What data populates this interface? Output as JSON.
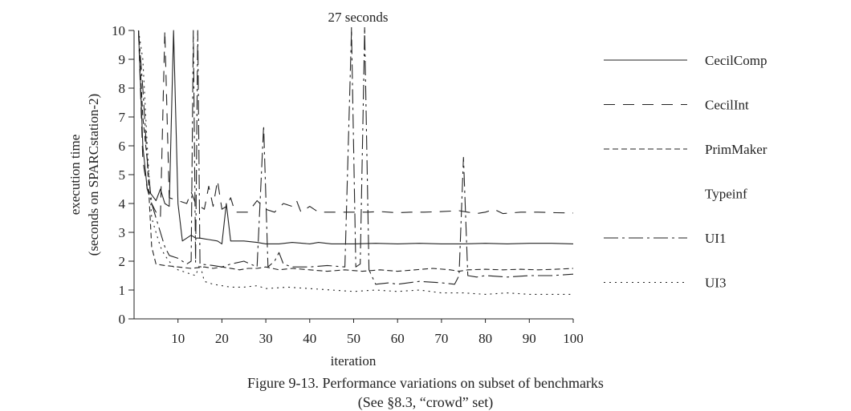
{
  "chart_data": {
    "type": "line",
    "xlabel": "iteration",
    "ylabel_line1": "execution time",
    "ylabel_line2": "(seconds on SPARCstation-2)",
    "xlim": [
      0,
      100
    ],
    "ylim": [
      0,
      10
    ],
    "x_ticks": [
      10,
      20,
      30,
      40,
      50,
      60,
      70,
      80,
      90,
      100
    ],
    "y_ticks": [
      0,
      1,
      2,
      3,
      4,
      5,
      6,
      7,
      8,
      9,
      10
    ],
    "annotation": "27 seconds",
    "legend_position": "right",
    "grid": false,
    "series": [
      {
        "name": "CecilComp",
        "dash": "solid",
        "points": [
          [
            1,
            10
          ],
          [
            2,
            6
          ],
          [
            3,
            4.5
          ],
          [
            4,
            4.3
          ],
          [
            5,
            4.1
          ],
          [
            6,
            4.5
          ],
          [
            7,
            4.0
          ],
          [
            8,
            3.9
          ],
          [
            9,
            10
          ],
          [
            10,
            4.0
          ],
          [
            11,
            2.7
          ],
          [
            12,
            2.8
          ],
          [
            13,
            2.9
          ],
          [
            14,
            2.8
          ],
          [
            15,
            2.8
          ],
          [
            17,
            2.75
          ],
          [
            19,
            2.7
          ],
          [
            20,
            2.6
          ],
          [
            21,
            4.0
          ],
          [
            22,
            2.7
          ],
          [
            25,
            2.7
          ],
          [
            28,
            2.65
          ],
          [
            30,
            2.6
          ],
          [
            33,
            2.6
          ],
          [
            36,
            2.65
          ],
          [
            40,
            2.6
          ],
          [
            42,
            2.65
          ],
          [
            45,
            2.6
          ],
          [
            50,
            2.6
          ],
          [
            55,
            2.62
          ],
          [
            60,
            2.6
          ],
          [
            65,
            2.62
          ],
          [
            70,
            2.6
          ],
          [
            75,
            2.6
          ],
          [
            80,
            2.62
          ],
          [
            85,
            2.6
          ],
          [
            90,
            2.62
          ],
          [
            95,
            2.62
          ],
          [
            100,
            2.6
          ]
        ]
      },
      {
        "name": "CecilInt",
        "dash": "14,10",
        "points": [
          [
            1,
            10
          ],
          [
            2,
            5.5
          ],
          [
            3,
            4.5
          ],
          [
            4,
            4.0
          ],
          [
            5,
            3.7
          ],
          [
            6,
            3.5
          ],
          [
            7,
            10
          ],
          [
            8,
            4.2
          ],
          [
            10,
            4.1
          ],
          [
            12,
            4.0
          ],
          [
            13,
            4.4
          ],
          [
            14,
            4.0
          ],
          [
            16,
            3.8
          ],
          [
            17,
            4.6
          ],
          [
            18,
            3.9
          ],
          [
            19,
            4.8
          ],
          [
            20,
            3.8
          ],
          [
            21,
            3.9
          ],
          [
            22,
            4.2
          ],
          [
            23,
            3.7
          ],
          [
            26,
            3.7
          ],
          [
            28,
            4.1
          ],
          [
            30,
            3.8
          ],
          [
            32,
            3.7
          ],
          [
            34,
            4.0
          ],
          [
            36,
            3.9
          ],
          [
            37,
            4.1
          ],
          [
            38,
            3.7
          ],
          [
            40,
            3.9
          ],
          [
            42,
            3.7
          ],
          [
            45,
            3.7
          ],
          [
            48,
            3.7
          ],
          [
            50,
            3.7
          ],
          [
            53,
            3.7
          ],
          [
            56,
            3.72
          ],
          [
            60,
            3.68
          ],
          [
            63,
            3.7
          ],
          [
            66,
            3.7
          ],
          [
            70,
            3.72
          ],
          [
            74,
            3.75
          ],
          [
            76,
            3.7
          ],
          [
            78,
            3.65
          ],
          [
            80,
            3.7
          ],
          [
            82,
            3.8
          ],
          [
            84,
            3.65
          ],
          [
            88,
            3.7
          ],
          [
            92,
            3.7
          ],
          [
            96,
            3.68
          ],
          [
            100,
            3.67
          ]
        ]
      },
      {
        "name": "PrimMaker",
        "dash": "7,4",
        "points": [
          [
            1,
            10
          ],
          [
            2,
            7
          ],
          [
            3,
            5.5
          ],
          [
            4,
            2.5
          ],
          [
            5,
            1.9
          ],
          [
            7,
            1.85
          ],
          [
            10,
            1.8
          ],
          [
            13,
            1.75
          ],
          [
            16,
            1.8
          ],
          [
            18,
            1.75
          ],
          [
            20,
            1.8
          ],
          [
            24,
            1.7
          ],
          [
            26,
            1.75
          ],
          [
            28,
            1.75
          ],
          [
            30,
            1.8
          ],
          [
            33,
            1.7
          ],
          [
            36,
            1.75
          ],
          [
            40,
            1.7
          ],
          [
            44,
            1.65
          ],
          [
            48,
            1.7
          ],
          [
            52,
            1.65
          ],
          [
            56,
            1.7
          ],
          [
            60,
            1.65
          ],
          [
            64,
            1.7
          ],
          [
            68,
            1.75
          ],
          [
            72,
            1.7
          ],
          [
            74,
            1.65
          ],
          [
            76,
            1.7
          ],
          [
            80,
            1.72
          ],
          [
            84,
            1.7
          ],
          [
            88,
            1.72
          ],
          [
            92,
            1.7
          ],
          [
            96,
            1.72
          ],
          [
            100,
            1.75
          ]
        ]
      },
      {
        "name": "Typeinf",
        "dash": "",
        "points": []
      },
      {
        "name": "UI1",
        "dash": "18,5,3,5",
        "points": [
          [
            1,
            10
          ],
          [
            2,
            8
          ],
          [
            3,
            5.5
          ],
          [
            4,
            4.0
          ],
          [
            5,
            3.5
          ],
          [
            6,
            3.0
          ],
          [
            7,
            2.5
          ],
          [
            8,
            2.2
          ],
          [
            10,
            2.1
          ],
          [
            12,
            1.9
          ],
          [
            13,
            2.0
          ],
          [
            13.5,
            10
          ],
          [
            14,
            1.95
          ],
          [
            14.5,
            10
          ],
          [
            15,
            1.9
          ],
          [
            18,
            1.85
          ],
          [
            20,
            1.8
          ],
          [
            22,
            1.9
          ],
          [
            25,
            2.0
          ],
          [
            28,
            1.8
          ],
          [
            29.5,
            6.7
          ],
          [
            30.5,
            1.8
          ],
          [
            32,
            2.0
          ],
          [
            33,
            2.3
          ],
          [
            34,
            1.9
          ],
          [
            36,
            1.8
          ],
          [
            40,
            1.8
          ],
          [
            44,
            1.85
          ],
          [
            48,
            1.8
          ],
          [
            49.5,
            10
          ],
          [
            50.5,
            1.8
          ],
          [
            51.5,
            1.9
          ],
          [
            52.5,
            10
          ],
          [
            53.5,
            1.7
          ],
          [
            55,
            1.2
          ],
          [
            58,
            1.25
          ],
          [
            60,
            1.2
          ],
          [
            65,
            1.3
          ],
          [
            70,
            1.25
          ],
          [
            73,
            1.2
          ],
          [
            74,
            1.5
          ],
          [
            75,
            5.6
          ],
          [
            76,
            1.5
          ],
          [
            78,
            1.45
          ],
          [
            80,
            1.5
          ],
          [
            85,
            1.45
          ],
          [
            90,
            1.5
          ],
          [
            95,
            1.5
          ],
          [
            100,
            1.55
          ]
        ]
      },
      {
        "name": "UI3",
        "dash": "2,5",
        "points": [
          [
            1,
            10
          ],
          [
            2,
            9
          ],
          [
            3,
            6
          ],
          [
            4,
            3.5
          ],
          [
            5,
            3.0
          ],
          [
            6,
            2.5
          ],
          [
            7,
            2.2
          ],
          [
            8,
            2.0
          ],
          [
            9,
            1.8
          ],
          [
            10,
            1.7
          ],
          [
            12,
            1.6
          ],
          [
            14,
            1.5
          ],
          [
            15,
            1.9
          ],
          [
            16,
            1.3
          ],
          [
            18,
            1.2
          ],
          [
            20,
            1.15
          ],
          [
            22,
            1.1
          ],
          [
            25,
            1.1
          ],
          [
            28,
            1.15
          ],
          [
            30,
            1.05
          ],
          [
            35,
            1.1
          ],
          [
            40,
            1.05
          ],
          [
            45,
            1.0
          ],
          [
            50,
            0.95
          ],
          [
            55,
            1.0
          ],
          [
            60,
            0.95
          ],
          [
            65,
            1.0
          ],
          [
            70,
            0.9
          ],
          [
            75,
            0.9
          ],
          [
            80,
            0.85
          ],
          [
            85,
            0.9
          ],
          [
            90,
            0.85
          ],
          [
            95,
            0.85
          ],
          [
            100,
            0.85
          ]
        ]
      }
    ]
  },
  "caption_line1": "Figure 9-13.  Performance variations on subset of benchmarks",
  "caption_line2": "(See §8.3, “crowd” set)"
}
